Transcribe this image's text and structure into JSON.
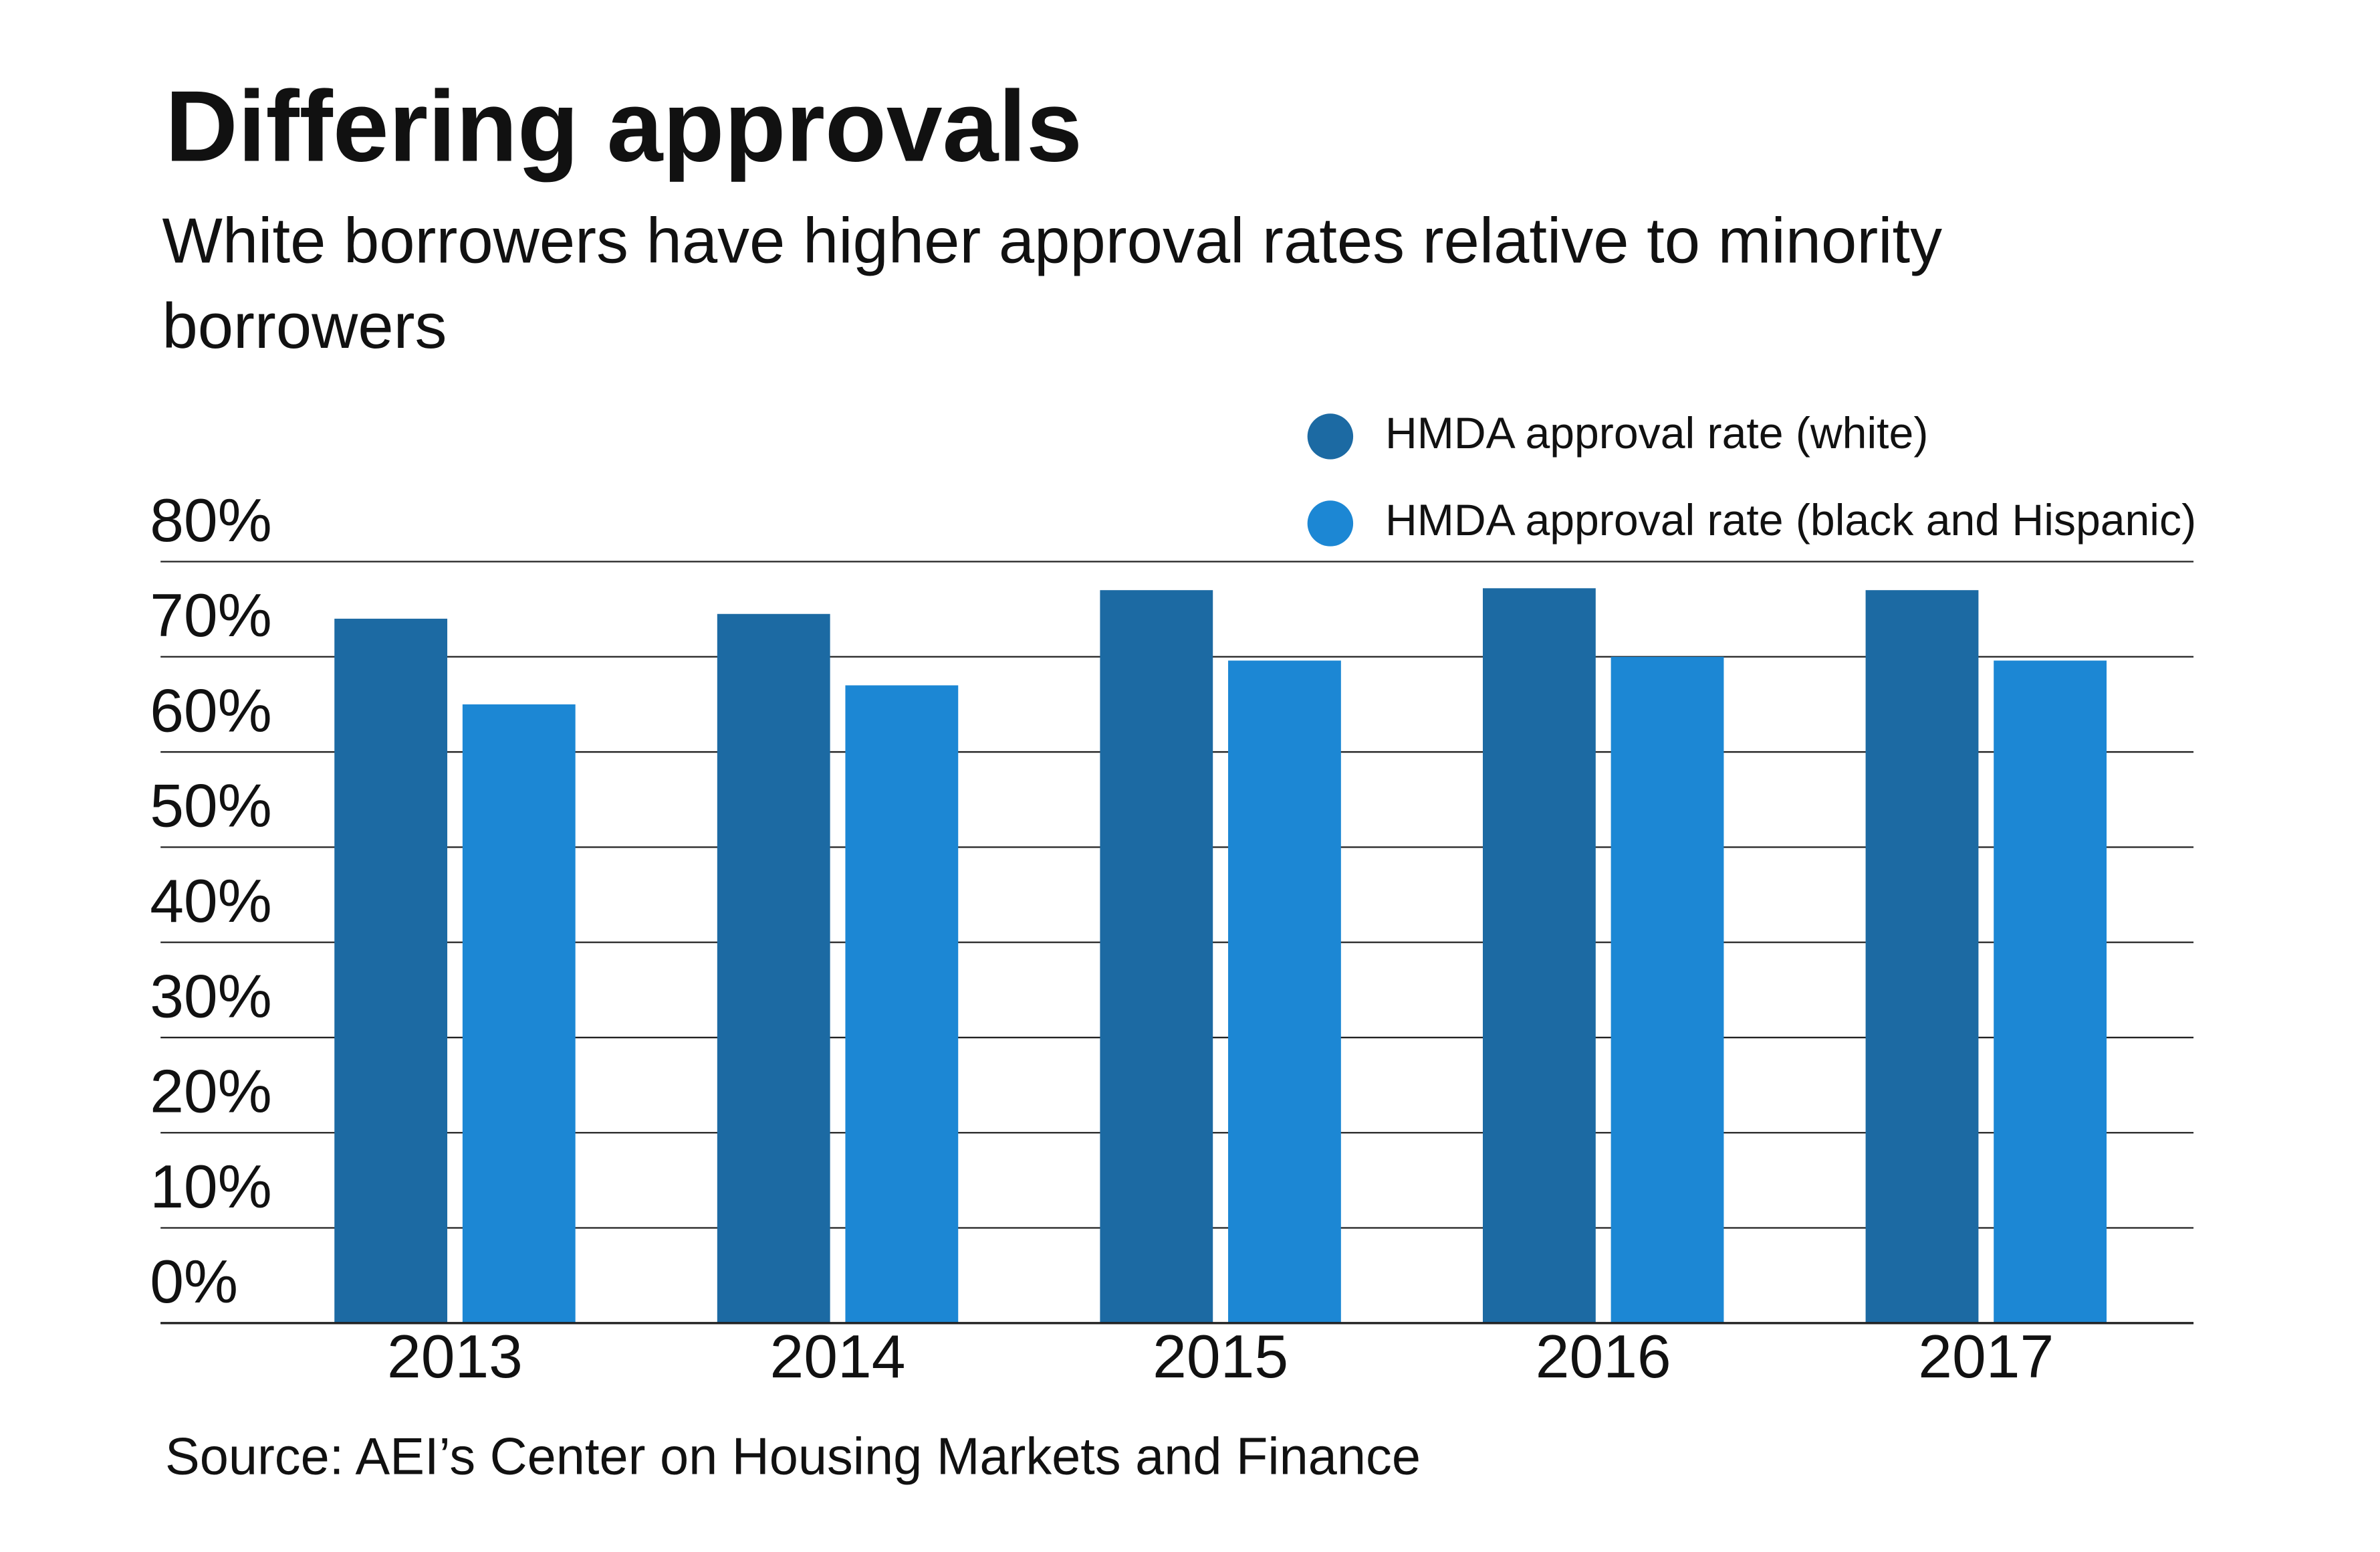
{
  "chart_data": {
    "type": "bar",
    "title": "Differing approvals",
    "subtitle": "White borrowers have higher approval rates relative to minority borrowers",
    "categories": [
      "2013",
      "2014",
      "2015",
      "2016",
      "2017"
    ],
    "series": [
      {
        "name": "HMDA approval rate (white)",
        "color": "#1c6aa3",
        "values": [
          74,
          74.5,
          77,
          77.2,
          77
        ]
      },
      {
        "name": "HMDA approval rate (black and Hispanic)",
        "color": "#1c87d4",
        "values": [
          65,
          67,
          69.6,
          70,
          69.6
        ]
      }
    ],
    "ylim": [
      0,
      80
    ],
    "yticks": [
      {
        "value": 0,
        "label": "0%"
      },
      {
        "value": 10,
        "label": "10%"
      },
      {
        "value": 20,
        "label": "20%"
      },
      {
        "value": 30,
        "label": "30%"
      },
      {
        "value": 40,
        "label": "40%"
      },
      {
        "value": 50,
        "label": "50%"
      },
      {
        "value": 60,
        "label": "60%"
      },
      {
        "value": 70,
        "label": "70%"
      },
      {
        "value": 80,
        "label": "80%"
      }
    ],
    "grid": true,
    "legend": "top-right",
    "source": "Source: AEI’s Center on Housing Markets and Finance"
  }
}
